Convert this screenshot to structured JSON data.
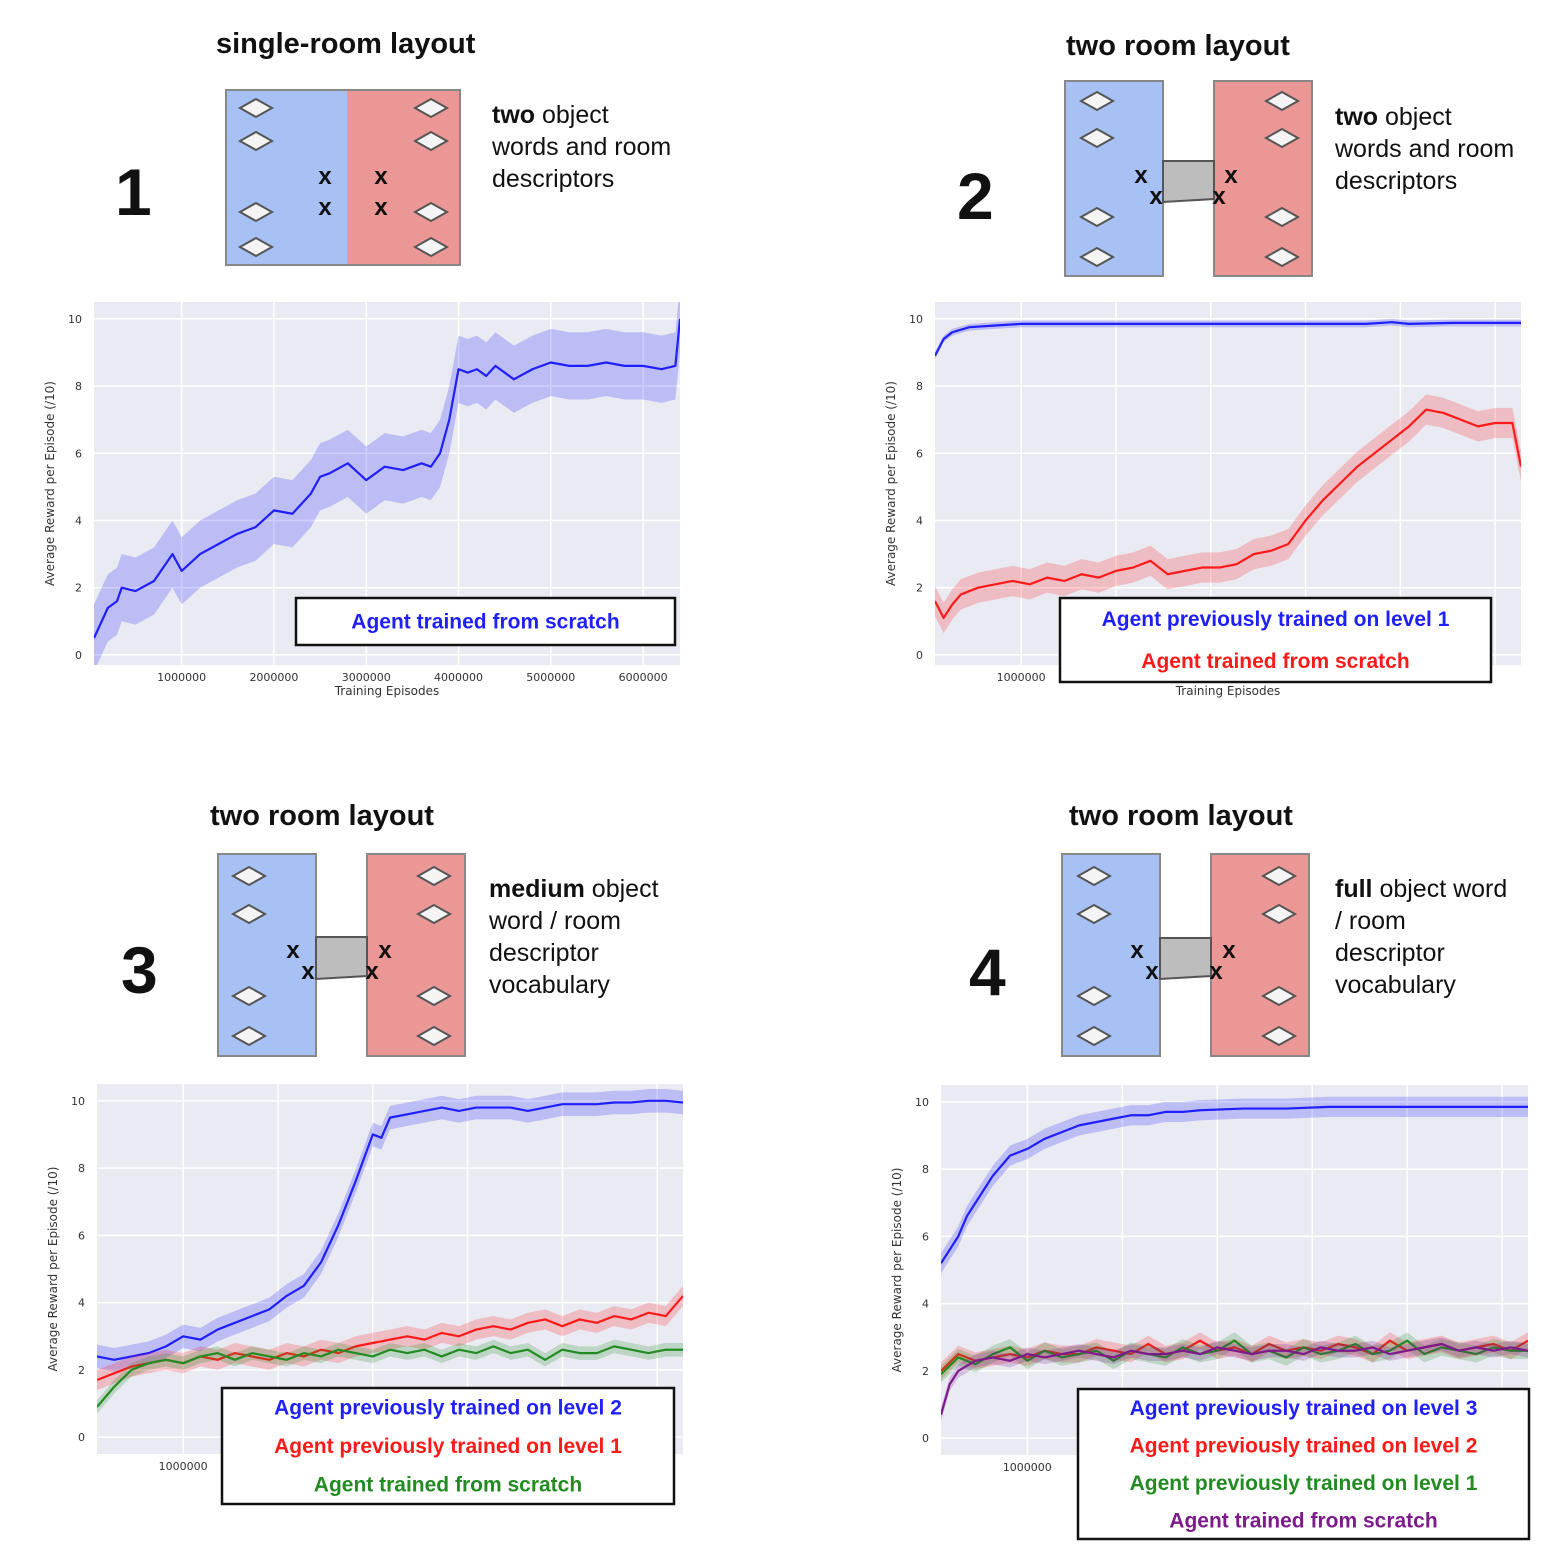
{
  "colors": {
    "blue": "#1f1fff",
    "red": "#ff1a1a",
    "green": "#228b22",
    "purple": "#7d1a8c",
    "room_left": "#a7c1f5",
    "room_right": "#eb9796",
    "corridor": "#bdbdbd",
    "plot_bg": "#eaeaf2"
  },
  "panels": [
    {
      "number": "1",
      "layout_title": "single-room layout",
      "rooms": "single",
      "description": {
        "lead": "two",
        "rest": " object words and room descriptors"
      },
      "chart_data": {
        "type": "line",
        "xlabel": "Training Episodes",
        "ylabel": "Average Reward per Episode (/10)",
        "xlim": [
          50000,
          6400000
        ],
        "ylim": [
          -0.3,
          10.5
        ],
        "xticks": [
          1000000,
          2000000,
          3000000,
          4000000,
          5000000,
          6000000
        ],
        "yticks": [
          0,
          2,
          4,
          6,
          8,
          10
        ],
        "grid": true,
        "legend_placement": "bottom-right",
        "series": [
          {
            "name": "Agent trained from scratch",
            "color": "blue",
            "x": [
              50000,
              200000,
              300000,
              350000,
              500000,
              700000,
              900000,
              1000000,
              1200000,
              1400000,
              1600000,
              1800000,
              2000000,
              2200000,
              2400000,
              2500000,
              2600000,
              2800000,
              3000000,
              3200000,
              3400000,
              3600000,
              3700000,
              3800000,
              3900000,
              4000000,
              4100000,
              4200000,
              4300000,
              4400000,
              4600000,
              4800000,
              5000000,
              5200000,
              5400000,
              5600000,
              5800000,
              6000000,
              6200000,
              6350000,
              6400000
            ],
            "y": [
              0.5,
              1.4,
              1.6,
              2.0,
              1.9,
              2.2,
              3.0,
              2.5,
              3.0,
              3.3,
              3.6,
              3.8,
              4.3,
              4.2,
              4.8,
              5.3,
              5.4,
              5.7,
              5.2,
              5.6,
              5.5,
              5.7,
              5.6,
              6.0,
              7.0,
              8.5,
              8.4,
              8.5,
              8.3,
              8.6,
              8.2,
              8.5,
              8.7,
              8.6,
              8.6,
              8.7,
              8.6,
              8.6,
              8.5,
              8.6,
              10.0
            ],
            "band": 1.0
          }
        ]
      }
    },
    {
      "number": "2",
      "layout_title": "two room layout",
      "rooms": "two",
      "description": {
        "lead": "two",
        "rest": " object words and room descriptors"
      },
      "chart_data": {
        "type": "line",
        "xlabel": "Training Episodes",
        "ylabel": "Average Reward per Episode (/10)",
        "xlim": [
          0,
          6800000
        ],
        "ylim": [
          -0.3,
          10.5
        ],
        "xticks": [
          1000000
        ],
        "gridx": [
          1000000,
          2100000,
          3200000,
          4300000,
          5400000,
          6500000
        ],
        "yticks": [
          0,
          2,
          4,
          6,
          8,
          10
        ],
        "grid": true,
        "legend_placement": "bottom-right",
        "series": [
          {
            "name": "Agent previously trained on level 1",
            "color": "blue",
            "x": [
              0,
              100000,
              200000,
              400000,
              700000,
              1000000,
              2000000,
              3000000,
              4000000,
              5000000,
              5300000,
              5500000,
              6000000,
              6800000
            ],
            "y": [
              8.9,
              9.4,
              9.6,
              9.75,
              9.8,
              9.85,
              9.85,
              9.85,
              9.85,
              9.85,
              9.9,
              9.85,
              9.88,
              9.88
            ],
            "band": 0.1
          },
          {
            "name": "Agent trained from scratch",
            "color": "red",
            "x": [
              0,
              100000,
              200000,
              300000,
              500000,
              700000,
              900000,
              1100000,
              1300000,
              1500000,
              1700000,
              1900000,
              2100000,
              2300000,
              2500000,
              2700000,
              2900000,
              3100000,
              3300000,
              3500000,
              3700000,
              3900000,
              4100000,
              4300000,
              4500000,
              4700000,
              4900000,
              5100000,
              5300000,
              5500000,
              5700000,
              5900000,
              6100000,
              6300000,
              6500000,
              6700000,
              6800000
            ],
            "y": [
              1.6,
              1.1,
              1.5,
              1.8,
              2.0,
              2.1,
              2.2,
              2.1,
              2.3,
              2.2,
              2.4,
              2.3,
              2.5,
              2.6,
              2.8,
              2.4,
              2.5,
              2.6,
              2.6,
              2.7,
              3.0,
              3.1,
              3.3,
              4.0,
              4.6,
              5.1,
              5.6,
              6.0,
              6.4,
              6.8,
              7.3,
              7.2,
              7.0,
              6.8,
              6.9,
              6.9,
              5.6
            ],
            "band": 0.45
          }
        ]
      }
    },
    {
      "number": "3",
      "layout_title": "two room layout",
      "rooms": "two",
      "description": {
        "lead": "medium",
        "rest": " object word / room descriptor vocabulary"
      },
      "chart_data": {
        "type": "line",
        "xlabel": "",
        "ylabel": "Average Reward per Episode (/10)",
        "xlim": [
          0,
          6800000
        ],
        "ylim": [
          -0.5,
          10.5
        ],
        "xticks": [
          1000000
        ],
        "gridx": [
          1000000,
          2100000,
          3200000,
          4300000,
          5400000,
          6500000
        ],
        "yticks": [
          0,
          2,
          4,
          6,
          8,
          10
        ],
        "grid": true,
        "legend_placement": "bottom-right",
        "series": [
          {
            "name": "Agent previously trained on level 2",
            "color": "blue",
            "x": [
              0,
              200000,
              400000,
              600000,
              800000,
              1000000,
              1200000,
              1400000,
              1600000,
              1800000,
              2000000,
              2200000,
              2400000,
              2600000,
              2800000,
              3000000,
              3200000,
              3300000,
              3400000,
              3600000,
              3800000,
              4000000,
              4200000,
              4400000,
              4600000,
              4800000,
              5000000,
              5200000,
              5400000,
              5600000,
              5800000,
              6000000,
              6200000,
              6400000,
              6600000,
              6800000
            ],
            "y": [
              2.4,
              2.3,
              2.4,
              2.5,
              2.7,
              3.0,
              2.9,
              3.2,
              3.4,
              3.6,
              3.8,
              4.2,
              4.5,
              5.2,
              6.3,
              7.6,
              9.0,
              8.9,
              9.5,
              9.6,
              9.7,
              9.8,
              9.7,
              9.8,
              9.8,
              9.8,
              9.7,
              9.8,
              9.9,
              9.9,
              9.9,
              9.95,
              9.95,
              10.0,
              10.0,
              9.95
            ],
            "band": 0.35
          },
          {
            "name": "Agent previously trained on level 1",
            "color": "red",
            "x": [
              0,
              200000,
              400000,
              600000,
              800000,
              1000000,
              1200000,
              1400000,
              1600000,
              1800000,
              2000000,
              2200000,
              2400000,
              2600000,
              2800000,
              3000000,
              3200000,
              3400000,
              3600000,
              3800000,
              4000000,
              4200000,
              4400000,
              4600000,
              4800000,
              5000000,
              5200000,
              5400000,
              5600000,
              5800000,
              6000000,
              6200000,
              6400000,
              6600000,
              6800000
            ],
            "y": [
              1.7,
              1.9,
              2.1,
              2.2,
              2.3,
              2.2,
              2.4,
              2.3,
              2.5,
              2.4,
              2.3,
              2.5,
              2.4,
              2.6,
              2.5,
              2.7,
              2.8,
              2.9,
              3.0,
              2.9,
              3.1,
              3.0,
              3.2,
              3.3,
              3.2,
              3.4,
              3.5,
              3.3,
              3.5,
              3.4,
              3.6,
              3.5,
              3.7,
              3.6,
              4.2
            ],
            "band": 0.3
          },
          {
            "name": "Agent trained from scratch",
            "color": "green",
            "x": [
              0,
              200000,
              400000,
              600000,
              800000,
              1000000,
              1200000,
              1400000,
              1600000,
              1800000,
              2000000,
              2200000,
              2400000,
              2600000,
              2800000,
              3000000,
              3200000,
              3400000,
              3600000,
              3800000,
              4000000,
              4200000,
              4400000,
              4600000,
              4800000,
              5000000,
              5200000,
              5400000,
              5600000,
              5800000,
              6000000,
              6200000,
              6400000,
              6600000,
              6800000
            ],
            "y": [
              0.9,
              1.5,
              2.0,
              2.2,
              2.3,
              2.2,
              2.4,
              2.5,
              2.3,
              2.5,
              2.4,
              2.3,
              2.5,
              2.4,
              2.6,
              2.5,
              2.4,
              2.6,
              2.5,
              2.6,
              2.4,
              2.6,
              2.5,
              2.7,
              2.5,
              2.6,
              2.3,
              2.6,
              2.5,
              2.5,
              2.7,
              2.6,
              2.5,
              2.6,
              2.6
            ],
            "band": 0.2
          }
        ]
      }
    },
    {
      "number": "4",
      "layout_title": "two room layout",
      "rooms": "two",
      "description": {
        "lead": "full",
        "rest": " object word / room descriptor vocabulary"
      },
      "chart_data": {
        "type": "line",
        "xlabel": "",
        "ylabel": "Average Reward per Episode (/10)",
        "xlim": [
          0,
          6800000
        ],
        "ylim": [
          -0.5,
          10.5
        ],
        "xticks": [
          1000000
        ],
        "gridx": [
          1000000,
          2100000,
          3200000,
          4300000,
          5400000,
          6500000
        ],
        "yticks": [
          0,
          2,
          4,
          6,
          8,
          10
        ],
        "grid": true,
        "legend_placement": "bottom-right",
        "series": [
          {
            "name": "Agent previously trained on level 3",
            "color": "blue",
            "x": [
              0,
              100000,
              200000,
              300000,
              400000,
              500000,
              600000,
              700000,
              800000,
              1000000,
              1200000,
              1400000,
              1600000,
              1800000,
              2000000,
              2200000,
              2400000,
              2600000,
              2800000,
              3000000,
              3500000,
              4000000,
              4500000,
              5000000,
              5500000,
              6000000,
              6500000,
              6800000
            ],
            "y": [
              5.2,
              5.6,
              6.0,
              6.6,
              7.0,
              7.4,
              7.8,
              8.1,
              8.4,
              8.6,
              8.9,
              9.1,
              9.3,
              9.4,
              9.5,
              9.6,
              9.6,
              9.7,
              9.7,
              9.75,
              9.8,
              9.8,
              9.85,
              9.85,
              9.85,
              9.85,
              9.85,
              9.85
            ],
            "band": 0.3
          },
          {
            "name": "Agent previously trained on level 2",
            "color": "red",
            "x": [
              0,
              200000,
              400000,
              600000,
              800000,
              1000000,
              1200000,
              1400000,
              1600000,
              1800000,
              2000000,
              2200000,
              2400000,
              2600000,
              2800000,
              3000000,
              3200000,
              3400000,
              3600000,
              3800000,
              4000000,
              4200000,
              4400000,
              4600000,
              4800000,
              5000000,
              5200000,
              5400000,
              5600000,
              5800000,
              6000000,
              6200000,
              6400000,
              6600000,
              6800000
            ],
            "y": [
              2.0,
              2.5,
              2.3,
              2.4,
              2.5,
              2.4,
              2.6,
              2.5,
              2.5,
              2.7,
              2.6,
              2.5,
              2.8,
              2.5,
              2.6,
              2.9,
              2.6,
              2.7,
              2.5,
              2.8,
              2.6,
              2.7,
              2.6,
              2.8,
              2.7,
              2.5,
              2.9,
              2.6,
              2.7,
              2.8,
              2.6,
              2.7,
              2.8,
              2.6,
              2.9
            ],
            "band": 0.25
          },
          {
            "name": "Agent previously trained on level 1",
            "color": "green",
            "x": [
              0,
              200000,
              400000,
              600000,
              800000,
              1000000,
              1200000,
              1400000,
              1600000,
              1800000,
              2000000,
              2200000,
              2400000,
              2600000,
              2800000,
              3000000,
              3200000,
              3400000,
              3600000,
              3800000,
              4000000,
              4200000,
              4400000,
              4600000,
              4800000,
              5000000,
              5200000,
              5400000,
              5600000,
              5800000,
              6000000,
              6200000,
              6400000,
              6600000,
              6800000
            ],
            "y": [
              1.9,
              2.4,
              2.2,
              2.5,
              2.7,
              2.3,
              2.6,
              2.4,
              2.5,
              2.6,
              2.3,
              2.6,
              2.5,
              2.4,
              2.7,
              2.5,
              2.6,
              2.9,
              2.5,
              2.6,
              2.4,
              2.7,
              2.5,
              2.6,
              2.8,
              2.5,
              2.6,
              2.9,
              2.5,
              2.7,
              2.6,
              2.5,
              2.7,
              2.6,
              2.6
            ],
            "band": 0.25
          },
          {
            "name": "Agent trained from scratch",
            "color": "purple",
            "x": [
              0,
              100000,
              200000,
              400000,
              600000,
              800000,
              1000000,
              1200000,
              1400000,
              1600000,
              1800000,
              2000000,
              2200000,
              2400000,
              2600000,
              2800000,
              3000000,
              3200000,
              3400000,
              3600000,
              3800000,
              4000000,
              4200000,
              4400000,
              4600000,
              4800000,
              5000000,
              5200000,
              5400000,
              5600000,
              5800000,
              6000000,
              6200000,
              6400000,
              6600000,
              6800000
            ],
            "y": [
              0.7,
              1.6,
              2.0,
              2.3,
              2.4,
              2.3,
              2.5,
              2.4,
              2.5,
              2.6,
              2.5,
              2.4,
              2.6,
              2.5,
              2.5,
              2.6,
              2.5,
              2.7,
              2.6,
              2.5,
              2.6,
              2.6,
              2.5,
              2.7,
              2.6,
              2.6,
              2.7,
              2.5,
              2.6,
              2.7,
              2.8,
              2.6,
              2.7,
              2.6,
              2.7,
              2.6
            ],
            "band": 0.2
          }
        ]
      }
    }
  ]
}
